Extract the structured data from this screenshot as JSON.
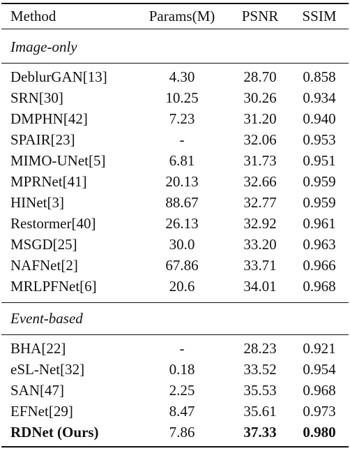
{
  "header": {
    "method": "Method",
    "params": "Params(M)",
    "psnr": "PSNR",
    "ssim": "SSIM"
  },
  "sections": [
    {
      "label": "Image-only",
      "rows": [
        {
          "method": "DeblurGAN[13]",
          "params": "4.30",
          "psnr": "28.70",
          "ssim": "0.858"
        },
        {
          "method": "SRN[30]",
          "params": "10.25",
          "psnr": "30.26",
          "ssim": "0.934"
        },
        {
          "method": "DMPHN[42]",
          "params": "7.23",
          "psnr": "31.20",
          "ssim": "0.940"
        },
        {
          "method": "SPAIR[23]",
          "params": "-",
          "psnr": "32.06",
          "ssim": "0.953"
        },
        {
          "method": "MIMO-UNet[5]",
          "params": "6.81",
          "psnr": "31.73",
          "ssim": "0.951"
        },
        {
          "method": "MPRNet[41]",
          "params": "20.13",
          "psnr": "32.66",
          "ssim": "0.959"
        },
        {
          "method": "HINet[3]",
          "params": "88.67",
          "psnr": "32.77",
          "ssim": "0.959"
        },
        {
          "method": "Restormer[40]",
          "params": "26.13",
          "psnr": "32.92",
          "ssim": "0.961"
        },
        {
          "method": "MSGD[25]",
          "params": "30.0",
          "psnr": "33.20",
          "ssim": "0.963"
        },
        {
          "method": "NAFNet[2]",
          "params": "67.86",
          "psnr": "33.71",
          "ssim": "0.966"
        },
        {
          "method": "MRLPFNet[6]",
          "params": "20.6",
          "psnr": "34.01",
          "ssim": "0.968"
        }
      ]
    },
    {
      "label": "Event-based",
      "rows": [
        {
          "method": "BHA[22]",
          "params": "-",
          "psnr": "28.23",
          "ssim": "0.921"
        },
        {
          "method": "eSL-Net[32]",
          "params": "0.18",
          "psnr": "33.52",
          "ssim": "0.954"
        },
        {
          "method": "SAN[47]",
          "params": "2.25",
          "psnr": "35.53",
          "ssim": "0.968"
        },
        {
          "method": "EFNet[29]",
          "params": "8.47",
          "psnr": "35.61",
          "ssim": "0.973"
        },
        {
          "method": "RDNet (Ours)",
          "params": "7.86",
          "psnr": "37.33",
          "ssim": "0.980"
        }
      ]
    }
  ]
}
